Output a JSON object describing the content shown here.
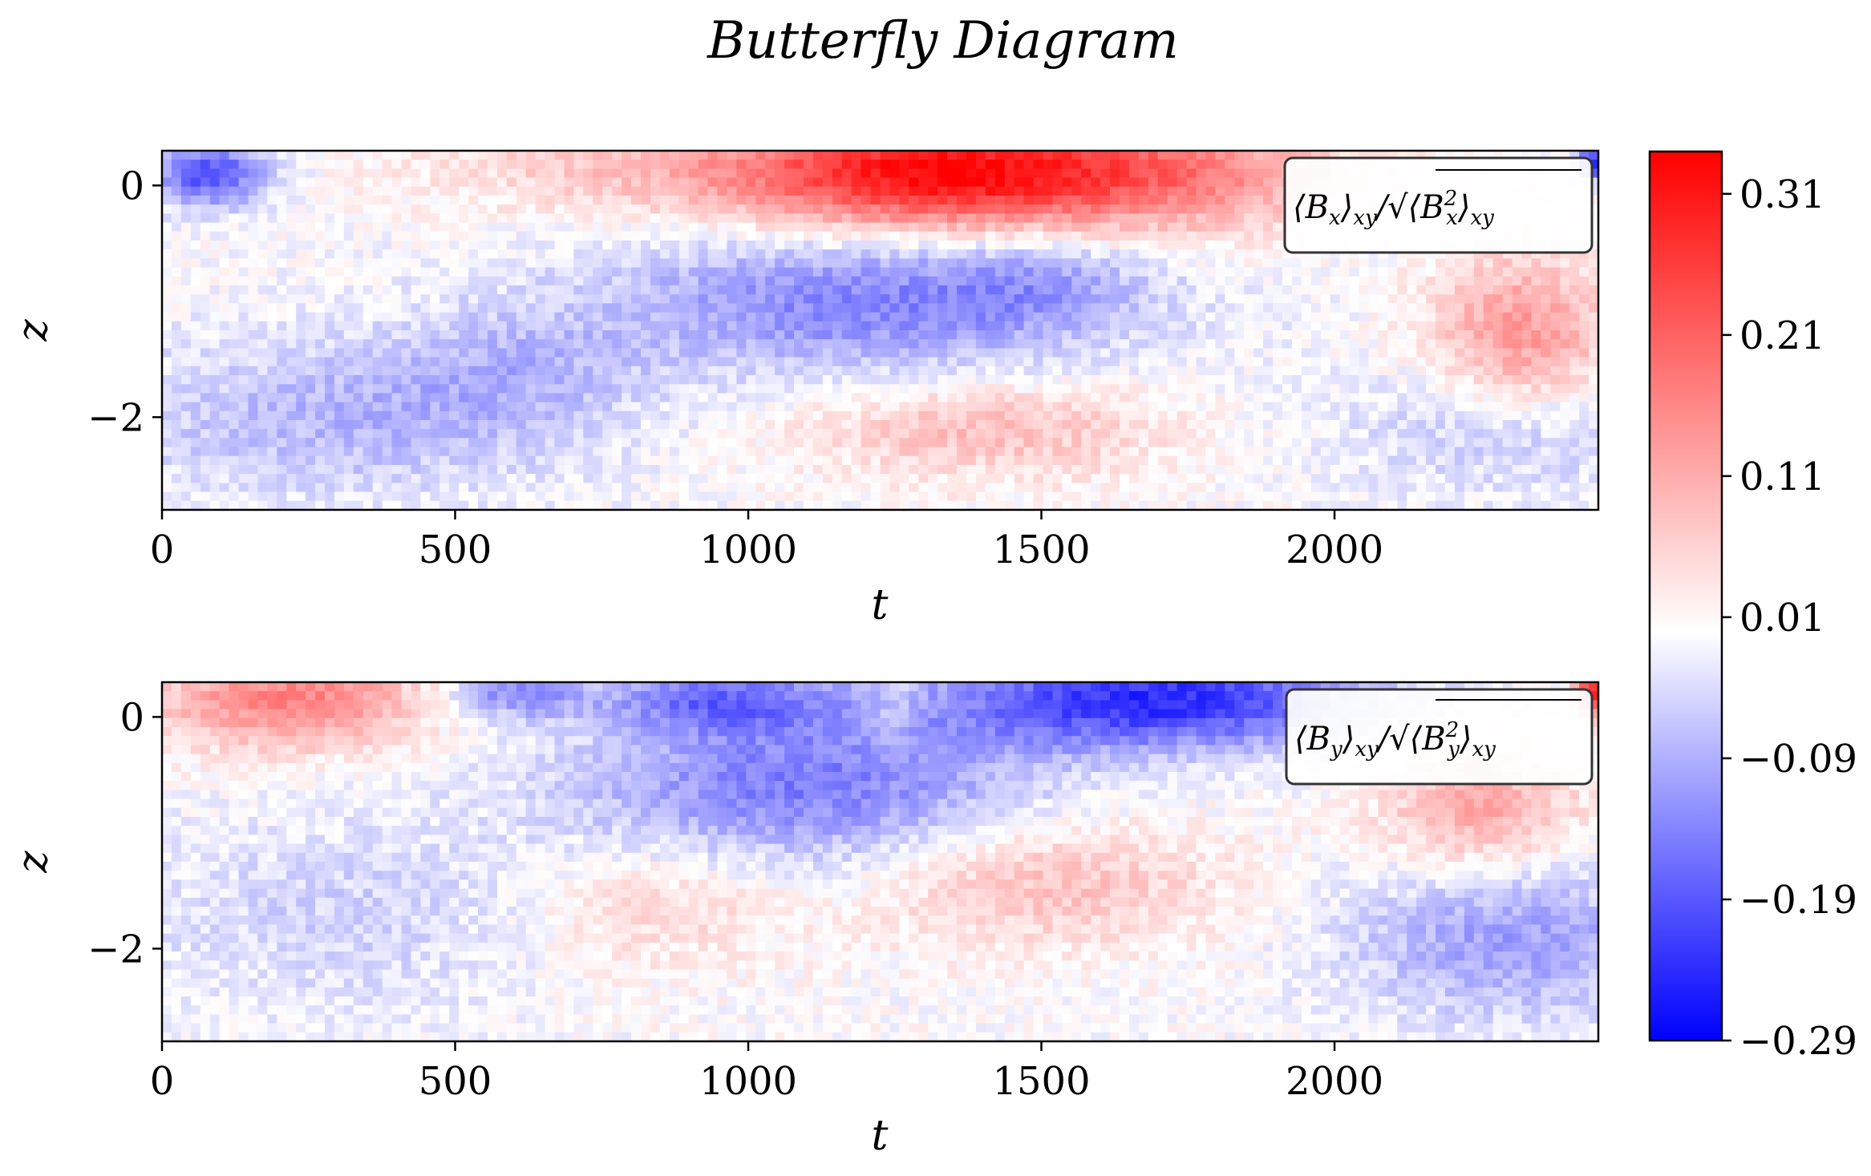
{
  "title": "Butterfly Diagram",
  "chart_data": {
    "type": "heatmap",
    "title": "Butterfly Diagram",
    "colormap": "bwr",
    "colors": {
      "low": "#0000ff",
      "mid": "#ffffff",
      "high": "#ff0000"
    },
    "colorbar": {
      "range": [
        -0.29,
        0.34
      ],
      "ticks": [
        0.31,
        0.21,
        0.11,
        0.01,
        -0.09,
        -0.19,
        -0.29
      ],
      "tick_labels": [
        "0.31",
        "0.21",
        "0.11",
        "0.01",
        "−0.09",
        "−0.19",
        "−0.29"
      ]
    },
    "panels": [
      {
        "name": "bx",
        "legend": {
          "main": "⟨B",
          "sub": "x",
          "mid": "⟩",
          "sub2": "xy",
          "tail": "/√⟨B",
          "sup": "2",
          "sub3": "x",
          "close": "⟩",
          "sub4": "xy"
        },
        "xlabel": "t",
        "ylabel": "z",
        "xlim": [
          0,
          2450
        ],
        "ylim": [
          -2.8,
          0.3
        ],
        "xticks": [
          0,
          500,
          1000,
          1500,
          2000
        ],
        "xtick_labels": [
          "0",
          "500",
          "1000",
          "1500",
          "2000"
        ],
        "yticks": [
          0,
          -2
        ],
        "ytick_labels": [
          "0",
          "−2"
        ],
        "features": [
          {
            "t": 1300,
            "z": 0.1,
            "st": 230,
            "sz": 0.35,
            "amp": 0.3
          },
          {
            "t": 1700,
            "z": 0.1,
            "st": 220,
            "sz": 0.35,
            "amp": 0.16
          },
          {
            "t": 800,
            "z": 0.15,
            "st": 250,
            "sz": 0.3,
            "amp": 0.07
          },
          {
            "t": 80,
            "z": 0.1,
            "st": 70,
            "sz": 0.2,
            "amp": -0.2
          },
          {
            "t": 2440,
            "z": 0.2,
            "st": 20,
            "sz": 0.1,
            "amp": -0.25
          },
          {
            "t": 1200,
            "z": -1.0,
            "st": 320,
            "sz": 0.45,
            "amp": -0.14
          },
          {
            "t": 1500,
            "z": -0.8,
            "st": 120,
            "sz": 0.3,
            "amp": -0.05
          },
          {
            "t": 2320,
            "z": -1.3,
            "st": 110,
            "sz": 0.5,
            "amp": 0.14
          },
          {
            "t": 1400,
            "z": -2.1,
            "st": 220,
            "sz": 0.3,
            "amp": 0.09
          },
          {
            "t": 300,
            "z": -2.0,
            "st": 300,
            "sz": 0.5,
            "amp": -0.08
          },
          {
            "t": 2300,
            "z": -2.1,
            "st": 200,
            "sz": 0.4,
            "amp": -0.07
          },
          {
            "t": 600,
            "z": -1.6,
            "st": 150,
            "sz": 0.4,
            "amp": -0.05
          }
        ]
      },
      {
        "name": "by",
        "legend": {
          "main": "⟨B",
          "sub": "y",
          "mid": "⟩",
          "sub2": "xy",
          "tail": "/√⟨B",
          "sup": "2",
          "sub3": "y",
          "close": "⟩",
          "sub4": "xy"
        },
        "xlabel": "t",
        "ylabel": "z",
        "xlim": [
          0,
          2450
        ],
        "ylim": [
          -2.8,
          0.3
        ],
        "xticks": [
          0,
          500,
          1000,
          1500,
          2000
        ],
        "xtick_labels": [
          "0",
          "500",
          "1000",
          "1500",
          "2000"
        ],
        "yticks": [
          0,
          -2
        ],
        "ytick_labels": [
          "0",
          "−2"
        ],
        "features": [
          {
            "t": 220,
            "z": 0.15,
            "st": 160,
            "sz": 0.3,
            "amp": 0.17
          },
          {
            "t": 600,
            "z": 0.2,
            "st": 80,
            "sz": 0.15,
            "amp": -0.13
          },
          {
            "t": 950,
            "z": 0.15,
            "st": 140,
            "sz": 0.2,
            "amp": -0.14
          },
          {
            "t": 1700,
            "z": 0.15,
            "st": 260,
            "sz": 0.3,
            "amp": -0.24
          },
          {
            "t": 1250,
            "z": 0.1,
            "st": 30,
            "sz": 0.3,
            "amp": 0.05
          },
          {
            "t": 2440,
            "z": 0.2,
            "st": 20,
            "sz": 0.15,
            "amp": 0.28
          },
          {
            "t": 1100,
            "z": -0.6,
            "st": 280,
            "sz": 0.5,
            "amp": -0.15
          },
          {
            "t": 1500,
            "z": -1.4,
            "st": 220,
            "sz": 0.4,
            "amp": 0.09
          },
          {
            "t": 850,
            "z": -1.6,
            "st": 150,
            "sz": 0.4,
            "amp": 0.06
          },
          {
            "t": 2250,
            "z": -0.8,
            "st": 120,
            "sz": 0.4,
            "amp": 0.12
          },
          {
            "t": 2300,
            "z": -1.9,
            "st": 200,
            "sz": 0.5,
            "amp": -0.11
          },
          {
            "t": 300,
            "z": -1.7,
            "st": 250,
            "sz": 0.6,
            "amp": -0.05
          }
        ]
      }
    ]
  }
}
